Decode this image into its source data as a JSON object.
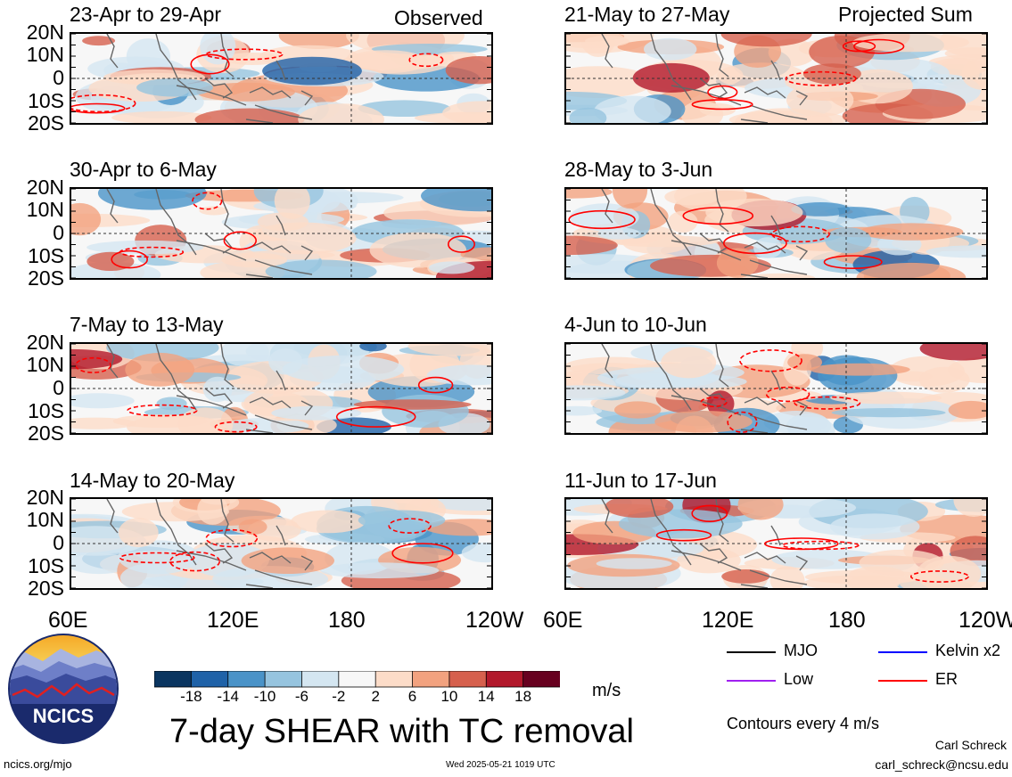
{
  "headers": {
    "left": "Observed",
    "right": "Projected Sum"
  },
  "panels": [
    {
      "title": "23-Apr to 29-Apr",
      "column": "observed"
    },
    {
      "title": "30-Apr to 6-May",
      "column": "observed"
    },
    {
      "title": "7-May to 13-May",
      "column": "observed"
    },
    {
      "title": "14-May to 20-May",
      "column": "observed"
    },
    {
      "title": "21-May to 27-May",
      "column": "projected"
    },
    {
      "title": "28-May to 3-Jun",
      "column": "projected"
    },
    {
      "title": "4-Jun to 10-Jun",
      "column": "projected"
    },
    {
      "title": "11-Jun to 17-Jun",
      "column": "projected"
    }
  ],
  "lat_labels": [
    "20N",
    "10N",
    "0",
    "10S",
    "20S"
  ],
  "lon_labels": [
    "60E",
    "120E",
    "180",
    "120W"
  ],
  "colorbar": {
    "ticks": [
      "-18",
      "-14",
      "-10",
      "-6",
      "-2",
      "2",
      "6",
      "10",
      "14",
      "18"
    ],
    "colors": [
      "#0a3560",
      "#1f62a8",
      "#4a93c8",
      "#96c4df",
      "#d4e6f1",
      "#f7f7f7",
      "#fcdcc8",
      "#f2a27f",
      "#d6604d",
      "#b2182b",
      "#67001f"
    ],
    "unit": "m/s"
  },
  "legend": {
    "items": [
      {
        "label": "MJO",
        "color": "#000000"
      },
      {
        "label": "Kelvin x2",
        "color": "#0000ff"
      },
      {
        "label": "Low",
        "color": "#a020f0"
      },
      {
        "label": "ER",
        "color": "#ff0000"
      }
    ],
    "contour_note": "Contours every 4 m/s"
  },
  "logo": {
    "text": "NCICS"
  },
  "title": "7-day SHEAR with TC removal",
  "footer": {
    "url": "ncics.org/mjo",
    "timestamp": "Wed 2025-05-21 1019 UTC",
    "author": "Carl Schreck",
    "email": "carl_schreck@ncsu.edu"
  }
}
